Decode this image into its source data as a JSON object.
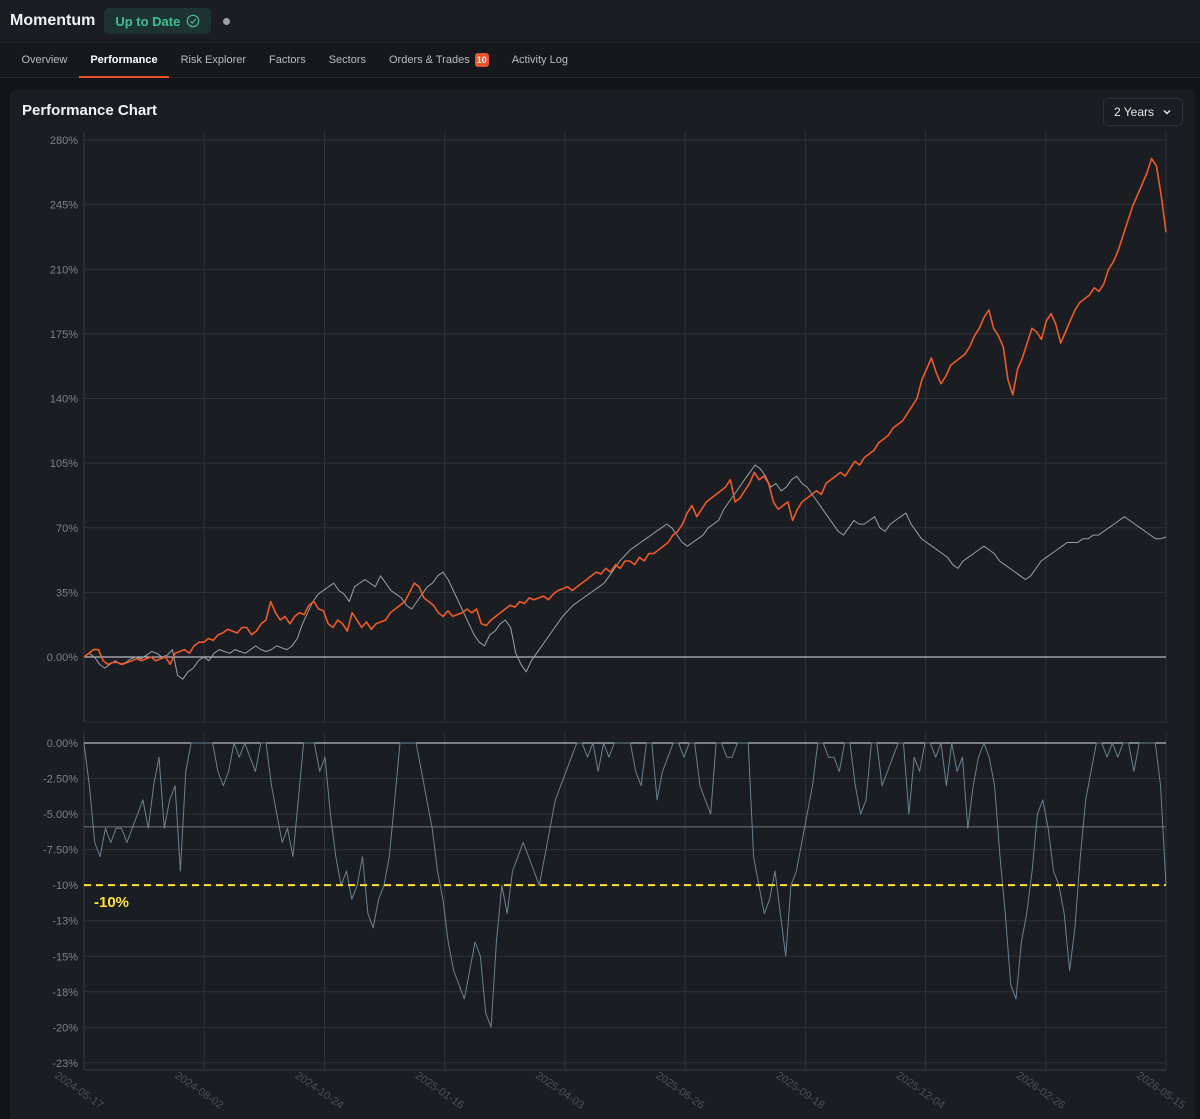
{
  "header": {
    "app_title": "Momentum",
    "status": "Up to Date"
  },
  "tabs": [
    {
      "label": "Overview"
    },
    {
      "label": "Performance"
    },
    {
      "label": "Risk Explorer"
    },
    {
      "label": "Factors"
    },
    {
      "label": "Sectors"
    },
    {
      "label": "Orders & Trades",
      "badge": "10"
    },
    {
      "label": "Activity Log"
    }
  ],
  "active_tab": "Performance",
  "panel": {
    "title": "Performance Chart",
    "range": "2 Years"
  },
  "colors": {
    "strategy": "#f05a28",
    "benchmark": "#9aa1a8",
    "drawdown": "#6b8290",
    "threshold": "#ffe135"
  },
  "chart_data": [
    {
      "type": "line",
      "title": "",
      "y_ticks": [
        "280%",
        "245%",
        "210%",
        "175%",
        "140%",
        "105%",
        "70%",
        "35%",
        "0.00%"
      ],
      "ylim": [
        -35,
        280
      ],
      "x_ticks": [
        "2024-05-17",
        "2024-08-02",
        "2024-10-24",
        "2025-01-16",
        "2025-04-03",
        "2025-06-26",
        "2025-09-18",
        "2025-12-04",
        "2026-02-26",
        "2026-05-15"
      ],
      "series": [
        {
          "values": [
            0,
            2,
            4,
            4,
            -2,
            -4,
            -3,
            -3,
            -4,
            -3,
            -2,
            -1,
            -2,
            -1,
            0,
            -2,
            -1,
            0,
            -4,
            2,
            3,
            4,
            2,
            6,
            8,
            8,
            10,
            9,
            12,
            13,
            15,
            14,
            13,
            16,
            16,
            12,
            14,
            18,
            20,
            30,
            24,
            20,
            22,
            18,
            22,
            24,
            23,
            28,
            30,
            26,
            25,
            18,
            16,
            20,
            18,
            14,
            24,
            20,
            16,
            19,
            15,
            18,
            19,
            20,
            24,
            26,
            28,
            30,
            35,
            40,
            38,
            32,
            30,
            28,
            24,
            22,
            25,
            22,
            23,
            24,
            26,
            24,
            26,
            18,
            17,
            20,
            22,
            24,
            26,
            28,
            27,
            30,
            29,
            32,
            31,
            32,
            33,
            31,
            34,
            36,
            37,
            38,
            36,
            38,
            40,
            42,
            44,
            46,
            45,
            48,
            46,
            50,
            48,
            52,
            52,
            50,
            54,
            52,
            56,
            56,
            58,
            60,
            62,
            66,
            68,
            72,
            78,
            82,
            76,
            80,
            84,
            86,
            88,
            90,
            92,
            96,
            84,
            86,
            90,
            94,
            100,
            96,
            98,
            94,
            84,
            80,
            82,
            84,
            74,
            80,
            84,
            86,
            88,
            90,
            88,
            94,
            96,
            98,
            100,
            98,
            102,
            106,
            104,
            108,
            110,
            112,
            116,
            118,
            120,
            124,
            126,
            128,
            132,
            136,
            140,
            150,
            156,
            162,
            154,
            148,
            152,
            158,
            160,
            162,
            164,
            168,
            174,
            178,
            184,
            188,
            178,
            174,
            168,
            150,
            142,
            156,
            162,
            170,
            178,
            176,
            172,
            182,
            186,
            180,
            170,
            176,
            182,
            188,
            192,
            194,
            196,
            200,
            198,
            202,
            210,
            214,
            220,
            228,
            236,
            244,
            250,
            256,
            262,
            270,
            266,
            250,
            230
          ],
          "name": ""
        },
        {
          "values": [
            0,
            2,
            0,
            -4,
            -6,
            -4,
            -2,
            -4,
            -3,
            -1,
            0,
            -1,
            1,
            3,
            2,
            0,
            1,
            4,
            -10,
            -12,
            -8,
            -6,
            -2,
            0,
            -2,
            2,
            4,
            3,
            2,
            4,
            3,
            2,
            4,
            6,
            4,
            3,
            4,
            6,
            5,
            4,
            6,
            10,
            18,
            24,
            30,
            34,
            36,
            38,
            40,
            36,
            34,
            30,
            38,
            40,
            42,
            40,
            38,
            44,
            40,
            36,
            34,
            32,
            28,
            26,
            30,
            34,
            38,
            40,
            44,
            46,
            42,
            36,
            30,
            24,
            18,
            12,
            8,
            6,
            12,
            14,
            18,
            20,
            16,
            2,
            -4,
            -8,
            -2,
            2,
            6,
            10,
            14,
            18,
            22,
            25,
            28,
            30,
            32,
            34,
            36,
            38,
            40,
            44,
            48,
            52,
            55,
            58,
            60,
            62,
            64,
            66,
            68,
            70,
            72,
            70,
            66,
            62,
            60,
            62,
            64,
            66,
            70,
            72,
            74,
            80,
            84,
            88,
            92,
            96,
            100,
            104,
            102,
            98,
            92,
            94,
            90,
            92,
            96,
            98,
            94,
            92,
            88,
            84,
            80,
            76,
            72,
            68,
            66,
            70,
            74,
            72,
            72,
            74,
            76,
            70,
            68,
            72,
            74,
            76,
            78,
            72,
            68,
            64,
            62,
            60,
            58,
            56,
            54,
            50,
            48,
            52,
            54,
            56,
            58,
            60,
            58,
            56,
            52,
            50,
            48,
            46,
            44,
            42,
            44,
            48,
            52,
            54,
            56,
            58,
            60,
            62,
            62,
            62,
            64,
            64,
            66,
            66,
            68,
            70,
            72,
            74,
            76,
            74,
            72,
            70,
            68,
            66,
            64,
            64,
            65
          ],
          "name": ""
        }
      ]
    },
    {
      "type": "area",
      "title": "",
      "y_ticks": [
        "0.00%",
        "-2.50%",
        "-5.00%",
        "-7.50%",
        "-10%",
        "-13%",
        "-15%",
        "-18%",
        "-20%",
        "-23%"
      ],
      "ylim": [
        -23,
        0
      ],
      "threshold": {
        "value": -10,
        "label": "-10%"
      },
      "series": [
        {
          "name": "",
          "values": [
            0,
            -3,
            -7,
            -8,
            -6,
            -7,
            -6,
            -6,
            -7,
            -6,
            -5,
            -4,
            -6,
            -3,
            -1,
            -6,
            -4,
            -3,
            -9,
            -2,
            0,
            0,
            0,
            0,
            0,
            -2,
            -3,
            -2,
            0,
            -1,
            0,
            -1,
            -2,
            0,
            0,
            -3,
            -5,
            -7,
            -6,
            -8,
            -4,
            0,
            0,
            0,
            -2,
            -1,
            -5,
            -8,
            -10,
            -9,
            -11,
            -10,
            -8,
            -12,
            -13,
            -11,
            -10,
            -8,
            -4,
            0,
            0,
            0,
            0,
            -2,
            -4,
            -6,
            -9,
            -11,
            -14,
            -16,
            -17,
            -18,
            -16,
            -14,
            -15,
            -19,
            -20,
            -14,
            -10,
            -12,
            -9,
            -8,
            -7,
            -8,
            -9,
            -10,
            -8,
            -6,
            -4,
            -3,
            -2,
            -1,
            0,
            0,
            -1,
            0,
            -2,
            0,
            -1,
            0,
            0,
            0,
            0,
            -2,
            -3,
            0,
            0,
            -4,
            -2,
            -1,
            0,
            0,
            -1,
            0,
            0,
            -3,
            -4,
            -5,
            0,
            0,
            -1,
            -1,
            0,
            0,
            0,
            -8,
            -10,
            -12,
            -11,
            -9,
            -12,
            -15,
            -10,
            -9,
            -7,
            -5,
            -3,
            0,
            0,
            -1,
            -1,
            -2,
            0,
            0,
            -3,
            -5,
            -4,
            0,
            0,
            -3,
            -2,
            -1,
            0,
            0,
            -5,
            -1,
            -2,
            0,
            0,
            -1,
            0,
            -3,
            0,
            -2,
            -1,
            -6,
            -3,
            -1,
            0,
            -1,
            -3,
            -8,
            -12,
            -17,
            -18,
            -14,
            -12,
            -9,
            -5,
            -4,
            -6,
            -9,
            -10,
            -12,
            -16,
            -13,
            -8,
            -4,
            -2,
            0,
            0,
            -1,
            0,
            -1,
            0,
            0,
            -2,
            0,
            0,
            0,
            0,
            -3,
            -10
          ]
        }
      ]
    }
  ]
}
